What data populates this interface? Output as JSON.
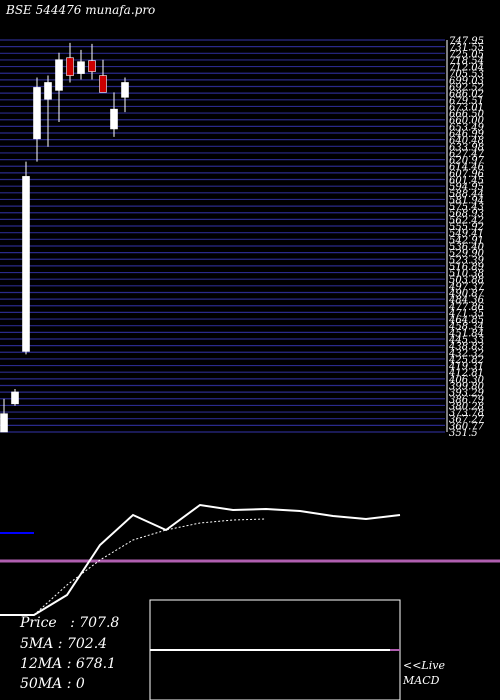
{
  "header": {
    "title": "BSE 544476  munafa.pro"
  },
  "chart_data": {
    "type": "candlestick",
    "ylim": [
      351.5,
      747.95
    ],
    "grid": true,
    "price_ticks": [
      "747.95",
      "731.55",
      "725.05",
      "718.54",
      "712.04",
      "705.53",
      "699.03",
      "692.52",
      "686.02",
      "679.51",
      "673.01",
      "666.50",
      "660.00",
      "653.49",
      "646.99",
      "640.48",
      "633.98",
      "627.47",
      "620.97",
      "614.46",
      "607.96",
      "601.45",
      "594.95",
      "588.44",
      "581.94",
      "575.43",
      "568.93",
      "562.42",
      "555.92",
      "549.41",
      "542.91",
      "536.40",
      "529.90",
      "523.39",
      "516.89",
      "510.38",
      "503.88",
      "497.37",
      "490.87",
      "484.36",
      "477.86",
      "471.35",
      "464.85",
      "458.34",
      "451.84",
      "445.33",
      "438.83",
      "432.32",
      "425.82",
      "419.31",
      "412.81",
      "406.30",
      "399.80",
      "393.29",
      "386.79",
      "380.28",
      "373.78",
      "367.27",
      "360.77",
      "351.5"
    ],
    "candles": [
      {
        "open": 351.5,
        "high": 385,
        "low": 351.5,
        "close": 370
      },
      {
        "open": 380,
        "high": 395,
        "low": 378,
        "close": 392
      },
      {
        "open": 433,
        "high": 625,
        "low": 430,
        "close": 610
      },
      {
        "open": 648,
        "high": 710,
        "low": 625,
        "close": 700
      },
      {
        "open": 688,
        "high": 712,
        "low": 640,
        "close": 705
      },
      {
        "open": 697,
        "high": 735,
        "low": 665,
        "close": 728
      },
      {
        "open": 730,
        "high": 745,
        "low": 705,
        "close": 712
      },
      {
        "open": 714,
        "high": 738,
        "low": 708,
        "close": 726
      },
      {
        "open": 727,
        "high": 744,
        "low": 708,
        "close": 716
      },
      {
        "open": 712,
        "high": 728,
        "low": 695,
        "close": 695
      },
      {
        "open": 658,
        "high": 695,
        "low": 650,
        "close": 678
      },
      {
        "open": 690,
        "high": 710,
        "low": 675,
        "close": 705
      }
    ],
    "indicator_lines": [
      {
        "name": "",
        "color": "#ffffff",
        "y": [
          0.0,
          0.0,
          0.2,
          0.7,
          1.0,
          0.85,
          1.1,
          1.05,
          1.06,
          1.04,
          0.99,
          0.96,
          1.0
        ]
      },
      {
        "name": "",
        "color": "#ffffff",
        "dashed": true,
        "y": [
          0.0,
          0.3,
          0.55,
          0.75,
          0.85,
          0.92,
          0.95,
          0.96
        ]
      }
    ],
    "macd": {
      "label": "MACD",
      "value": 0
    }
  },
  "info": {
    "price": "Price   : 707.8",
    "ma5": "5MA : 702.4",
    "ma12": "12MA : 678.1",
    "ma50": "50MA : 0"
  },
  "footer": {
    "live_label": "<<Live",
    "macd_label": "MACD"
  },
  "colors": {
    "background": "#000000",
    "grid": "#2a2a8a",
    "up": "#ffffff",
    "down": "#cc0000",
    "magenta": "#b05fb0",
    "blue_marker": "#0000ff"
  }
}
